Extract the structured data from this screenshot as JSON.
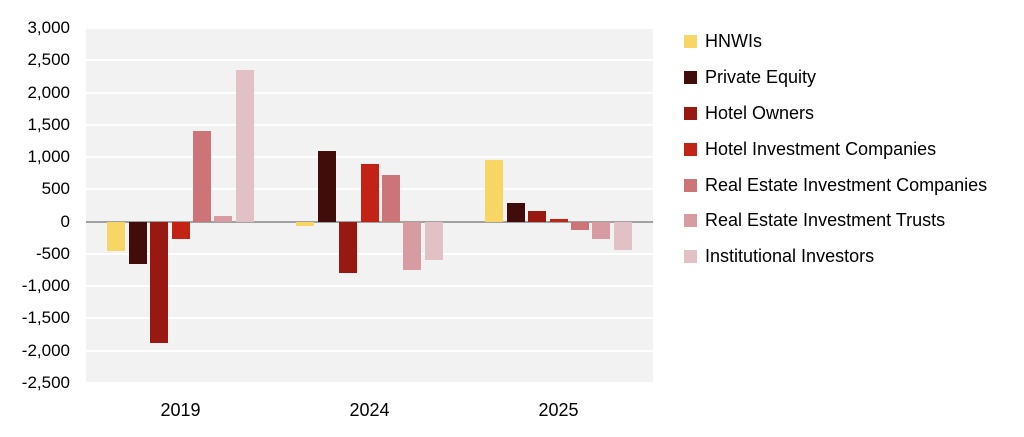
{
  "chart_data": {
    "type": "bar",
    "title": "",
    "xlabel": "",
    "ylabel": "",
    "categories": [
      "2019",
      "2024",
      "2025"
    ],
    "series": [
      {
        "name": "HNWIs",
        "color": "#F7D666",
        "values": [
          -450,
          -70,
          950
        ]
      },
      {
        "name": "Private Equity",
        "color": "#400D0B",
        "values": [
          -650,
          1100,
          290
        ]
      },
      {
        "name": "Hotel Owners",
        "color": "#971911",
        "values": [
          -1880,
          -800,
          170
        ]
      },
      {
        "name": "Hotel Investment Companies",
        "color": "#C22315",
        "values": [
          -270,
          900,
          40
        ]
      },
      {
        "name": "Real Estate Investment Companies",
        "color": "#CC7477",
        "values": [
          1400,
          720,
          -130
        ]
      },
      {
        "name": "Real Estate Investment Trusts",
        "color": "#D69CA1",
        "values": [
          80,
          -750,
          -270
        ]
      },
      {
        "name": "Institutional Investors",
        "color": "#E2C1C6",
        "values": [
          2350,
          -590,
          -440
        ]
      }
    ],
    "ylim": [
      -2500,
      3000
    ],
    "y_tick_step": 500,
    "y_ticks": [
      "3,000",
      "2,500",
      "2,000",
      "1,500",
      "1,000",
      "500",
      "0",
      "-500",
      "-1,000",
      "-1,500",
      "-2,000",
      "-2,500"
    ],
    "grid": true,
    "legend_position": "right",
    "colors": {
      "plot_background": "#F2F2F2",
      "gridline": "#FFFFFF",
      "zero_line": "#A0A0A0",
      "text": "#000000"
    }
  }
}
